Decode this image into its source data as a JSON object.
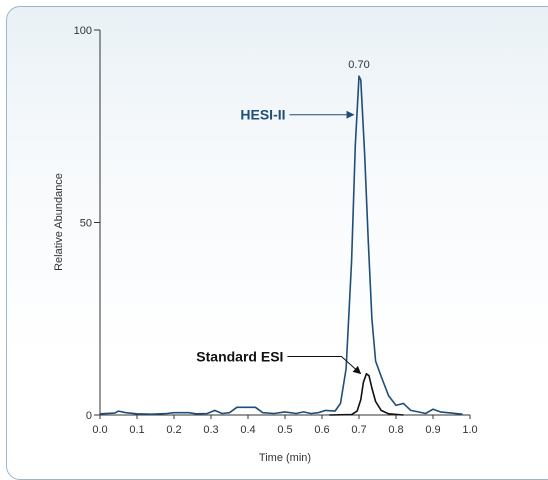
{
  "chart_data": {
    "type": "line",
    "title": "",
    "xlabel": "Time (min)",
    "ylabel": "Relative Abundance",
    "xlim": [
      0.0,
      1.0
    ],
    "ylim": [
      0,
      100
    ],
    "x_ticks": [
      0.0,
      0.1,
      0.2,
      0.3,
      0.4,
      0.5,
      0.6,
      0.7,
      0.8,
      0.9,
      1.0
    ],
    "x_tick_labels": [
      "0.0",
      "0.1",
      "0.2",
      "0.3",
      "0.4",
      "0.5",
      "0.6",
      "0.7",
      "0.8",
      "0.9",
      "1.0"
    ],
    "y_ticks": [
      0,
      50,
      100
    ],
    "y_tick_labels": [
      "0",
      "50",
      "100"
    ],
    "grid": false,
    "series": [
      {
        "name": "HESI-II",
        "color": "#1f4e79",
        "points": [
          [
            0.0,
            0.3
          ],
          [
            0.04,
            0.5
          ],
          [
            0.05,
            1.0
          ],
          [
            0.07,
            0.6
          ],
          [
            0.1,
            0.3
          ],
          [
            0.14,
            0.2
          ],
          [
            0.18,
            0.4
          ],
          [
            0.2,
            0.6
          ],
          [
            0.24,
            0.6
          ],
          [
            0.26,
            0.3
          ],
          [
            0.29,
            0.4
          ],
          [
            0.31,
            1.2
          ],
          [
            0.33,
            0.4
          ],
          [
            0.35,
            0.6
          ],
          [
            0.37,
            2.0
          ],
          [
            0.42,
            2.0
          ],
          [
            0.44,
            0.6
          ],
          [
            0.47,
            0.4
          ],
          [
            0.5,
            0.8
          ],
          [
            0.53,
            0.4
          ],
          [
            0.55,
            0.8
          ],
          [
            0.57,
            0.4
          ],
          [
            0.59,
            0.6
          ],
          [
            0.61,
            1.2
          ],
          [
            0.635,
            1.0
          ],
          [
            0.65,
            3.0
          ],
          [
            0.665,
            12.0
          ],
          [
            0.68,
            40.0
          ],
          [
            0.69,
            70.0
          ],
          [
            0.7,
            88.0
          ],
          [
            0.705,
            87.0
          ],
          [
            0.715,
            68.0
          ],
          [
            0.725,
            45.0
          ],
          [
            0.735,
            25.0
          ],
          [
            0.745,
            14.0
          ],
          [
            0.76,
            10.0
          ],
          [
            0.78,
            5.0
          ],
          [
            0.8,
            2.5
          ],
          [
            0.82,
            3.0
          ],
          [
            0.84,
            1.2
          ],
          [
            0.86,
            0.8
          ],
          [
            0.88,
            0.4
          ],
          [
            0.9,
            1.5
          ],
          [
            0.92,
            0.8
          ],
          [
            0.95,
            0.5
          ],
          [
            0.98,
            0.2
          ]
        ]
      },
      {
        "name": "Standard ESI",
        "color": "#111111",
        "points": [
          [
            0.62,
            0.0
          ],
          [
            0.68,
            0.1
          ],
          [
            0.695,
            1.0
          ],
          [
            0.705,
            4.0
          ],
          [
            0.712,
            8.5
          ],
          [
            0.72,
            10.7
          ],
          [
            0.727,
            10.2
          ],
          [
            0.735,
            7.0
          ],
          [
            0.745,
            3.5
          ],
          [
            0.76,
            1.2
          ],
          [
            0.78,
            0.3
          ],
          [
            0.82,
            0.0
          ]
        ]
      }
    ],
    "annotations": {
      "peak_label": {
        "text": "0.70",
        "x": 0.7,
        "y": 88
      },
      "hesi_label": {
        "text": "HESI-II",
        "color": "#1f4e79",
        "target_x": 0.696,
        "target_y": 78
      },
      "esi_label": {
        "text": "Standard ESI",
        "color": "#111111",
        "target_x": 0.712,
        "target_y": 10
      }
    }
  }
}
